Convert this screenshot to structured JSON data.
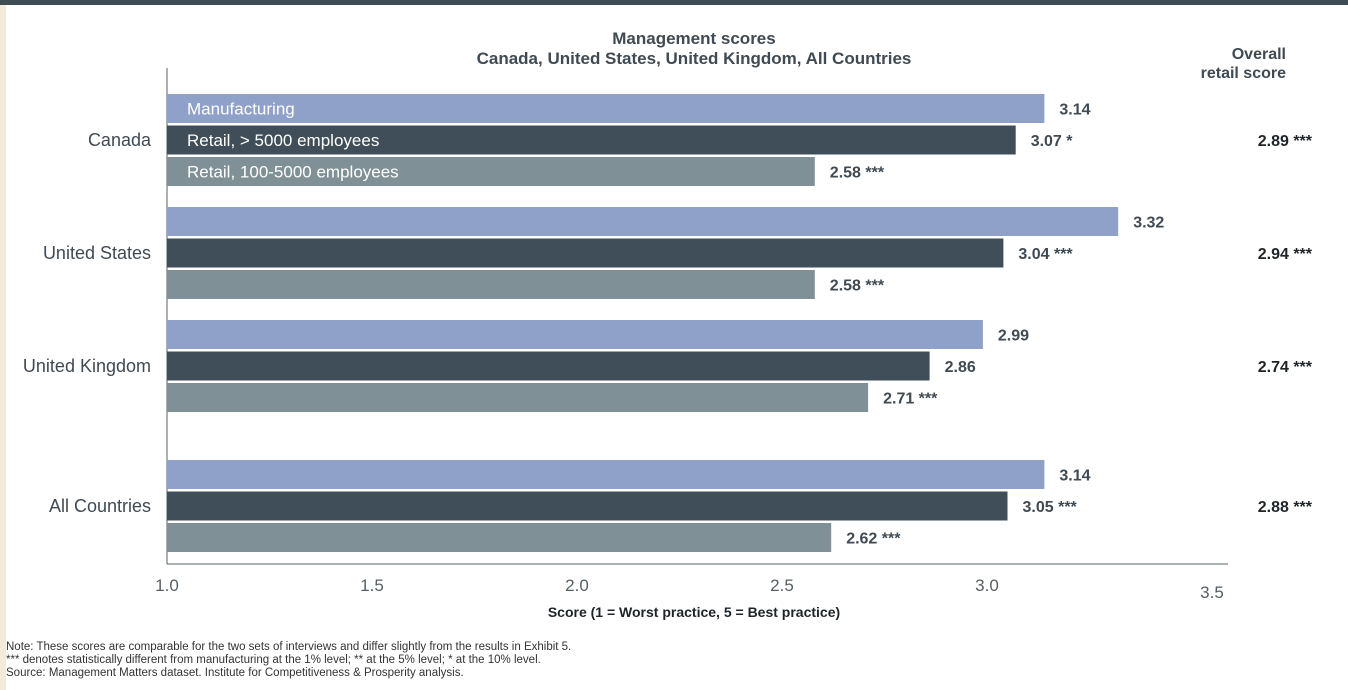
{
  "chart_data": {
    "type": "bar",
    "orientation": "horizontal",
    "title": "Management scores",
    "subtitle": "Canada, United States, United Kingdom, All Countries",
    "categories": [
      "Canada",
      "United States",
      "United Kingdom",
      "All Countries"
    ],
    "series": [
      {
        "name": "Manufacturing",
        "values": [
          3.14,
          3.32,
          2.99,
          3.14
        ],
        "labels": [
          "3.14",
          "3.32",
          "2.99",
          "3.14"
        ],
        "color": "#8fa1c9"
      },
      {
        "name": "Retail, > 5000 employees",
        "values": [
          3.07,
          3.04,
          2.86,
          3.05
        ],
        "labels": [
          "3.07 *",
          "3.04 ***",
          "2.86",
          "3.05 ***"
        ],
        "color": "#3f4e58"
      },
      {
        "name": "Retail, 100-5000 employees",
        "values": [
          2.58,
          2.58,
          2.71,
          2.62
        ],
        "labels": [
          "2.58 ***",
          "2.58 ***",
          "2.71 ***",
          "2.62 ***"
        ],
        "color": "#7f9097"
      }
    ],
    "overall_header": [
      "Overall",
      "retail score"
    ],
    "overall_scores": [
      "2.89 ***",
      "2.94 ***",
      "2.74 ***",
      "2.88 ***"
    ],
    "xlabel": "Score (1 = Worst practice, 5 = Best practice)",
    "xlim": [
      1.0,
      3.5
    ],
    "xticks": [
      "1.0",
      "1.5",
      "2.0",
      "2.5",
      "3.0",
      "3.5"
    ],
    "grid": false,
    "legend": "inside-bars"
  },
  "notes": [
    "Note: These scores  are comparable for the two sets of interviews and differ slightly from the results in Exhibit 5.",
    "*** denotes statistically different from manufacturing at the 1% level; ** at the 5% level; * at the 10% level.",
    "Source: Management Matters dataset. Institute for Competitiveness & Prosperity analysis."
  ]
}
